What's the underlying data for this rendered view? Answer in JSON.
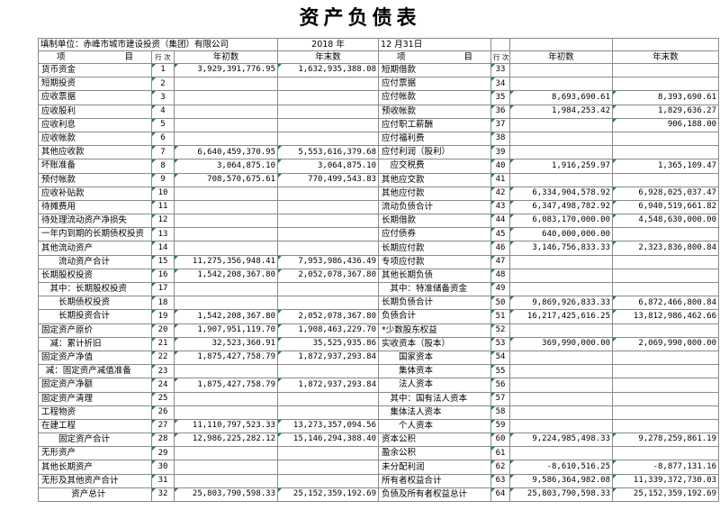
{
  "title": "资产负债表",
  "header": {
    "unit_label": "填制单位：赤峰市城市建设投资（集团）有限公司",
    "date_year": "2018   年",
    "date_monthday": "12  月31日"
  },
  "columns": {
    "item_left": "项",
    "item_right": "目",
    "line": "行\n次",
    "begin": "年初数",
    "end": "年末数"
  },
  "left_rows": [
    {
      "item": "货币资金",
      "line": "1",
      "indent": 0,
      "begin": "3,929,391,776.95",
      "end": "1,632,935,388.08"
    },
    {
      "item": "短期投资",
      "line": "2",
      "indent": 0,
      "begin": "",
      "end": ""
    },
    {
      "item": "应收票据",
      "line": "3",
      "indent": 0,
      "begin": "",
      "end": ""
    },
    {
      "item": "应收股利",
      "line": "4",
      "indent": 0,
      "begin": "",
      "end": ""
    },
    {
      "item": "应收利息",
      "line": "5",
      "indent": 0,
      "begin": "",
      "end": ""
    },
    {
      "item": "应收帐款",
      "line": "6",
      "indent": 0,
      "begin": "",
      "end": ""
    },
    {
      "item": "其他应收款",
      "line": "7",
      "indent": 0,
      "begin": "6,640,459,370.95",
      "end": "5,553,616,379.68"
    },
    {
      "item": "坏账准备",
      "line": "8",
      "indent": 0,
      "begin": "3,064,875.10",
      "end": "3,064,875.10"
    },
    {
      "item": "预付帐款",
      "line": "9",
      "indent": 0,
      "begin": "708,570,675.61",
      "end": "770,499,543.83"
    },
    {
      "item": "应收补贴款",
      "line": "10",
      "indent": 0,
      "begin": "",
      "end": ""
    },
    {
      "item": "待摊费用",
      "line": "11",
      "indent": 0,
      "begin": "",
      "end": ""
    },
    {
      "item": "待处理流动资产净损失",
      "line": "12",
      "indent": 0,
      "begin": "",
      "end": ""
    },
    {
      "item": "一年内到期的长期债权投资",
      "line": "13",
      "indent": 0,
      "begin": "",
      "end": ""
    },
    {
      "item": "其他流动资产",
      "line": "14",
      "indent": 0,
      "begin": "",
      "end": ""
    },
    {
      "item": "流动资产合计",
      "line": "15",
      "indent": 2,
      "begin": "11,275,356,948.41",
      "end": "7,953,986,436.49"
    },
    {
      "item": "长期股权投资",
      "line": "16",
      "indent": 0,
      "begin": "1,542,208,367.80",
      "end": "2,052,078,367.80"
    },
    {
      "item": "其中：长期股权投资",
      "line": "17",
      "indent": 1,
      "begin": "",
      "end": ""
    },
    {
      "item": "长期债权投资",
      "line": "18",
      "indent": 2,
      "begin": "",
      "end": ""
    },
    {
      "item": "长期投资合计",
      "line": "19",
      "indent": 2,
      "begin": "1,542,208,367.80",
      "end": "2,052,078,367.80"
    },
    {
      "item": "固定资产原价",
      "line": "20",
      "indent": 0,
      "begin": "1,907,951,119.70",
      "end": "1,908,463,229.70"
    },
    {
      "item": "减：累计折旧",
      "line": "21",
      "indent": 1,
      "begin": "32,523,360.91",
      "end": "35,525,935.86"
    },
    {
      "item": "固定资产净值",
      "line": "22",
      "indent": 0,
      "begin": "1,875,427,758.79",
      "end": "1,872,937,293.84"
    },
    {
      "item": "减：固定资产减值准备",
      "line": "23",
      "indent": 0.5,
      "begin": "",
      "end": ""
    },
    {
      "item": "固定资产净额",
      "line": "24",
      "indent": 0,
      "begin": "1,875,427,758.79",
      "end": "1,872,937,293.84"
    },
    {
      "item": "固定资产清理",
      "line": "25",
      "indent": 0,
      "begin": "",
      "end": ""
    },
    {
      "item": "工程物资",
      "line": "26",
      "indent": 0,
      "begin": "",
      "end": ""
    },
    {
      "item": "在建工程",
      "line": "27",
      "indent": 0,
      "begin": "11,110,797,523.33",
      "end": "13,273,357,094.56"
    },
    {
      "item": "固定资产合计",
      "line": "28",
      "indent": 2,
      "begin": "12,986,225,282.12",
      "end": "15,146,294,388.40"
    },
    {
      "item": "无形资产",
      "line": "29",
      "indent": 0,
      "begin": "",
      "end": ""
    },
    {
      "item": "其他长期资产",
      "line": "30",
      "indent": 0,
      "begin": "",
      "end": ""
    },
    {
      "item": "无形及其他资产合计",
      "line": "31",
      "indent": 0,
      "begin": "",
      "end": ""
    },
    {
      "item": "资产总计",
      "line": "32",
      "indent": 3.5,
      "begin": "25,803,790,598.33",
      "end": "25,152,359,192.69"
    }
  ],
  "right_rows": [
    {
      "item": "短期借款",
      "line": "33",
      "indent": 0,
      "begin": "",
      "end": ""
    },
    {
      "item": "应付票据",
      "line": "34",
      "indent": 0,
      "begin": "",
      "end": ""
    },
    {
      "item": "应付帐款",
      "line": "35",
      "indent": 0,
      "begin": "8,693,690.61",
      "end": "8,393,690.61"
    },
    {
      "item": "预收帐款",
      "line": "36",
      "indent": 0,
      "begin": "1,984,253.42",
      "end": "1,829,636.27"
    },
    {
      "item": "应付职工薪酬",
      "line": "37",
      "indent": 0,
      "begin": "",
      "end": "906,188.00"
    },
    {
      "item": "应付福利费",
      "line": "38",
      "indent": 0,
      "begin": "",
      "end": ""
    },
    {
      "item": "应付利润（股利）",
      "line": "39",
      "indent": 0,
      "begin": "",
      "end": ""
    },
    {
      "item": "应交税费",
      "line": "40",
      "indent": 1,
      "begin": "1,916,259.97",
      "end": "1,365,109.47"
    },
    {
      "item": "其他应交款",
      "line": "41",
      "indent": 0,
      "begin": "",
      "end": ""
    },
    {
      "item": "其他应付款",
      "line": "42",
      "indent": 0,
      "begin": "6,334,904,578.92",
      "end": "6,928,025,037.47"
    },
    {
      "item": "流动负债合计",
      "line": "43",
      "indent": 0,
      "begin": "6,347,498,782.92",
      "end": "6,940,519,661.82"
    },
    {
      "item": "长期借款",
      "line": "44",
      "indent": 0,
      "begin": "6,083,170,000.00",
      "end": "4,548,630,000.00"
    },
    {
      "item": "应付债券",
      "line": "45",
      "indent": 0,
      "begin": "640,000,000.00",
      "end": ""
    },
    {
      "item": "长期应付款",
      "line": "46",
      "indent": 0,
      "begin": "3,146,756,833.33",
      "end": "2,323,836,800.84"
    },
    {
      "item": "专项应付款",
      "line": "47",
      "indent": 0,
      "begin": "",
      "end": ""
    },
    {
      "item": "其他长期负债",
      "line": "48",
      "indent": 0,
      "begin": "",
      "end": ""
    },
    {
      "item": "其中：特准储备资金",
      "line": "49",
      "indent": 1,
      "begin": "",
      "end": ""
    },
    {
      "item": "长期负债合计",
      "line": "50",
      "indent": 0,
      "begin": "9,869,926,833.33",
      "end": "6,872,466,800.84"
    },
    {
      "item": "负债合计",
      "line": "51",
      "indent": 0,
      "begin": "16,217,425,616.25",
      "end": "13,812,986,462.66"
    },
    {
      "item": "*少数股东权益",
      "line": "52",
      "indent": 0,
      "begin": "",
      "end": ""
    },
    {
      "item": "实收资本（股本）",
      "line": "53",
      "indent": 0,
      "begin": "369,990,000.00",
      "end": "2,069,990,000.00"
    },
    {
      "item": "国家资本",
      "line": "54",
      "indent": 2,
      "begin": "",
      "end": ""
    },
    {
      "item": "集体资本",
      "line": "55",
      "indent": 2,
      "begin": "",
      "end": ""
    },
    {
      "item": "法人资本",
      "line": "56",
      "indent": 2,
      "begin": "",
      "end": ""
    },
    {
      "item": "其中：国有法人资本",
      "line": "57",
      "indent": 1,
      "begin": "",
      "end": ""
    },
    {
      "item": "集体法人资本",
      "line": "58",
      "indent": 1,
      "begin": "",
      "end": ""
    },
    {
      "item": "个人资本",
      "line": "59",
      "indent": 2,
      "begin": "",
      "end": ""
    },
    {
      "item": "资本公积",
      "line": "60",
      "indent": 0,
      "begin": "9,224,985,498.33",
      "end": "9,278,259,861.19"
    },
    {
      "item": "盈余公积",
      "line": "61",
      "indent": 0,
      "begin": "",
      "end": ""
    },
    {
      "item": "未分配利润",
      "line": "62",
      "indent": 0,
      "begin": "-8,610,516.25",
      "end": "-8,877,131.16"
    },
    {
      "item": "所有者权益合计",
      "line": "63",
      "indent": 0,
      "begin": "9,586,364,982.08",
      "end": "11,339,372,730.03"
    },
    {
      "item": "负债及所有者权益总计",
      "line": "64",
      "indent": 0,
      "begin": "25,803,790,598.33",
      "end": "25,152,359,192.69"
    }
  ]
}
